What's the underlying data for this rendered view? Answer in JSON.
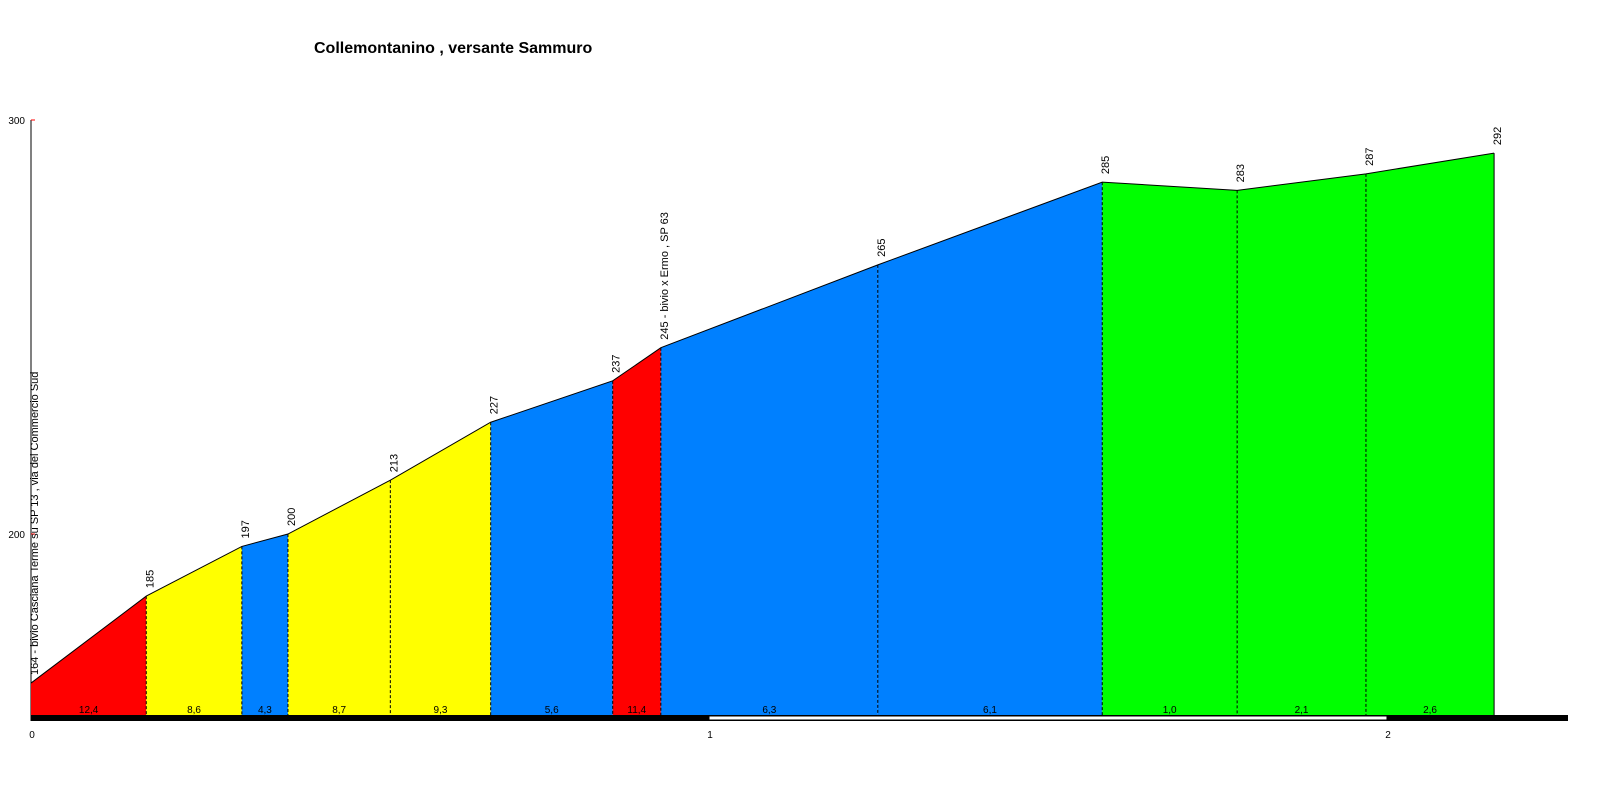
{
  "chart_data": {
    "type": "area",
    "title": "Collemontanino , versante Sammuro",
    "x": [
      0,
      0.17,
      0.311,
      0.379,
      0.53,
      0.678,
      0.858,
      0.929,
      1.249,
      1.58,
      1.779,
      1.969,
      2.158
    ],
    "values": [
      164,
      185,
      197,
      200,
      213,
      227,
      237,
      245,
      265,
      285,
      283,
      287,
      292
    ],
    "value_labels": [
      "164 - bivio Casciana Terme su SP 13 , via del Commercio Sud",
      "185",
      "197",
      "200",
      "213",
      "227",
      "237",
      "245 - bivio x Ermo , SP 63",
      "265",
      "285",
      "283",
      "287",
      "292"
    ],
    "gradients": [
      12.4,
      8.6,
      4.3,
      8.7,
      9.3,
      5.6,
      11.4,
      6.3,
      6.1,
      1.0,
      2.1,
      2.6
    ],
    "gradient_labels": [
      "12,4",
      "8,6",
      "4,3",
      "8,7",
      "9,3",
      "5,6",
      "11,4",
      "6,3",
      "6,1",
      "1,0",
      "2,1",
      "2,6"
    ],
    "segment_colors": [
      "#ff0000",
      "#ffff00",
      "#0080ff",
      "#ffff00",
      "#ffff00",
      "#0080ff",
      "#ff0000",
      "#0080ff",
      "#0080ff",
      "#00ff00",
      "#00ff00",
      "#00ff00"
    ],
    "xlim": [
      0,
      2.267
    ],
    "ylim": [
      155.8,
      300
    ],
    "xticks": [
      0,
      1,
      2
    ],
    "yticks": [
      200,
      300
    ]
  }
}
